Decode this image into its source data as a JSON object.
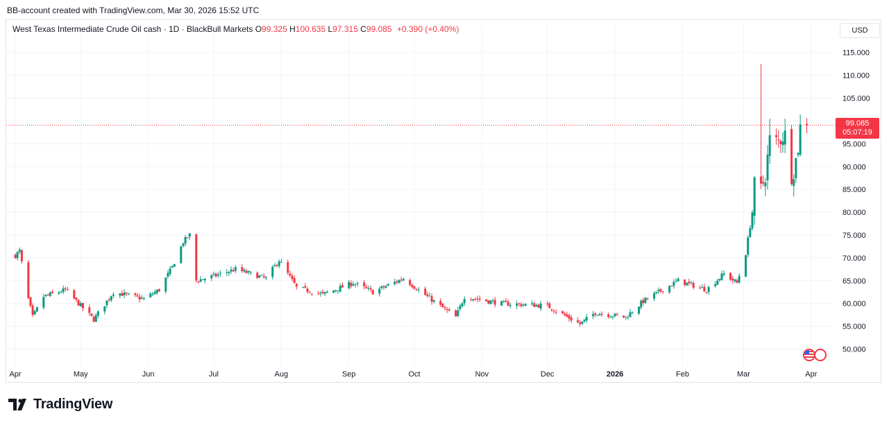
{
  "caption": "BB-account created with TradingView.com, Mar 30, 2026 15:52 UTC",
  "legend": {
    "title": "West Texas Intermediate Crude Oil cash · 1D · BlackBull Markets",
    "o_label": "O",
    "o_value": "99.325",
    "h_label": "H",
    "h_value": "100.635",
    "l_label": "L",
    "l_value": "97.315",
    "c_label": "C",
    "c_value": "99.085",
    "change": "+0.390 (+0.40%)"
  },
  "currency_button": "USD",
  "last_price": {
    "value": "99.085",
    "countdown": "05:07:19"
  },
  "logo_text": "TradingView",
  "colors": {
    "up": "#089981",
    "down": "#f23645",
    "grid": "#f0f3fa",
    "text": "#131722"
  },
  "chart_data": {
    "type": "candlestick",
    "title": "West Texas Intermediate Crude Oil cash",
    "interval": "1D",
    "ylim": [
      47.5,
      118
    ],
    "y_ticks": [
      "115.000",
      "110.000",
      "105.000",
      "100.000",
      "95.000",
      "90.000",
      "85.000",
      "80.000",
      "75.000",
      "70.000",
      "65.000",
      "60.000",
      "55.000",
      "50.000"
    ],
    "x_ticks": [
      "Apr",
      "May",
      "Jun",
      "Jul",
      "Aug",
      "Sep",
      "Oct",
      "Nov",
      "Dec",
      "2026",
      "Feb",
      "Mar",
      "Apr"
    ],
    "grid": true,
    "last_close": 99.085,
    "keypoints": [
      {
        "date": "2025-04-01",
        "close": 70.5
      },
      {
        "date": "2025-04-03",
        "close": 71.5
      },
      {
        "date": "2025-04-07",
        "close": 61.0
      },
      {
        "date": "2025-04-09",
        "close": 57.0
      },
      {
        "date": "2025-04-14",
        "close": 61.5
      },
      {
        "date": "2025-04-24",
        "close": 63.0
      },
      {
        "date": "2025-05-05",
        "close": 57.5
      },
      {
        "date": "2025-05-07",
        "close": 56.5
      },
      {
        "date": "2025-05-16",
        "close": 62.5
      },
      {
        "date": "2025-05-30",
        "close": 61.0
      },
      {
        "date": "2025-06-06",
        "close": 63.0
      },
      {
        "date": "2025-06-12",
        "close": 68.0
      },
      {
        "date": "2025-06-17",
        "close": 73.5
      },
      {
        "date": "2025-06-20",
        "close": 75.0
      },
      {
        "date": "2025-06-23",
        "close": 65.0
      },
      {
        "date": "2025-07-01",
        "close": 66.0
      },
      {
        "date": "2025-07-11",
        "close": 67.5
      },
      {
        "date": "2025-07-25",
        "close": 65.5
      },
      {
        "date": "2025-07-31",
        "close": 69.5
      },
      {
        "date": "2025-08-08",
        "close": 63.5
      },
      {
        "date": "2025-08-20",
        "close": 62.0
      },
      {
        "date": "2025-09-03",
        "close": 64.5
      },
      {
        "date": "2025-09-12",
        "close": 62.5
      },
      {
        "date": "2025-09-26",
        "close": 65.5
      },
      {
        "date": "2025-10-07",
        "close": 61.5
      },
      {
        "date": "2025-10-20",
        "close": 57.0
      },
      {
        "date": "2025-10-24",
        "close": 61.5
      },
      {
        "date": "2025-11-10",
        "close": 60.0
      },
      {
        "date": "2025-12-01",
        "close": 59.5
      },
      {
        "date": "2025-12-16",
        "close": 55.5
      },
      {
        "date": "2025-12-23",
        "close": 58.0
      },
      {
        "date": "2026-01-06",
        "close": 57.0
      },
      {
        "date": "2026-01-14",
        "close": 60.5
      },
      {
        "date": "2026-01-30",
        "close": 65.0
      },
      {
        "date": "2026-02-12",
        "close": 63.0
      },
      {
        "date": "2026-02-20",
        "close": 66.5
      },
      {
        "date": "2026-02-26",
        "close": 64.5
      },
      {
        "date": "2026-03-02",
        "close": 71.0
      },
      {
        "date": "2026-03-05",
        "close": 80.0
      },
      {
        "date": "2026-03-08",
        "close": 98.0
      },
      {
        "date": "2026-03-09",
        "close": 85.0
      },
      {
        "date": "2026-03-11",
        "close": 88.0
      },
      {
        "date": "2026-03-13",
        "close": 96.0
      },
      {
        "date": "2026-03-17",
        "close": 95.5
      },
      {
        "date": "2026-03-20",
        "close": 97.0
      },
      {
        "date": "2026-03-21",
        "close": 86.0
      },
      {
        "date": "2026-03-24",
        "close": 89.0
      },
      {
        "date": "2026-03-26",
        "close": 94.0
      },
      {
        "date": "2026-03-27",
        "close": 98.7
      },
      {
        "date": "2026-03-30",
        "close": 99.085
      }
    ],
    "spikes": [
      {
        "date": "2026-03-09",
        "high": 112.5
      },
      {
        "date": "2026-03-13",
        "high": 100.5
      },
      {
        "date": "2026-03-20",
        "high": 100.5
      },
      {
        "date": "2026-03-21",
        "low": 84.0
      }
    ]
  }
}
